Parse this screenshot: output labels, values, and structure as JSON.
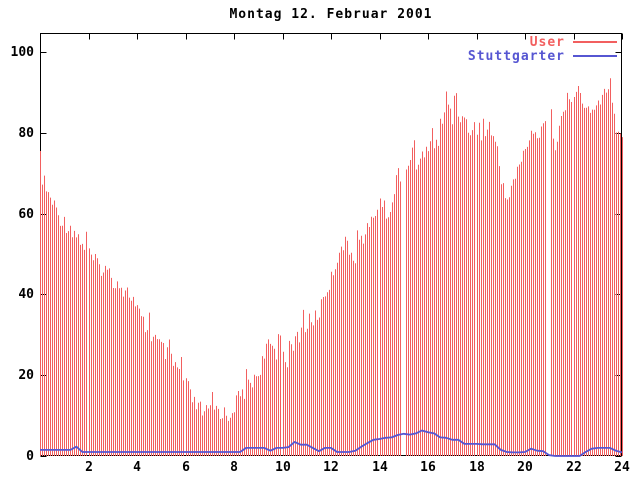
{
  "chart_data": {
    "type": "mixed",
    "title": "Montag 12. Februar 2001",
    "xlabel": "",
    "ylabel": "",
    "xlim": [
      0,
      24
    ],
    "ylim": [
      0,
      104.6
    ],
    "x_ticks": [
      2,
      4,
      6,
      8,
      10,
      12,
      14,
      16,
      18,
      20,
      22,
      24
    ],
    "y_ticks": [
      0,
      20,
      40,
      60,
      80,
      100
    ],
    "grid": false,
    "legend_position": "top-right-inside",
    "background_color": "#ffffff",
    "axis_color": "#000000",
    "sample_interval_hours": 0.25,
    "missing_intervals": [
      [
        14.88,
        15.02
      ],
      [
        20.88,
        21.06
      ]
    ],
    "series": [
      {
        "name": "User",
        "style": "impulses",
        "color": "#f25f5f",
        "values": [
          73,
          68,
          65,
          62,
          60,
          59,
          57,
          55,
          52,
          50,
          49,
          48,
          46,
          45,
          43,
          42,
          38,
          35,
          33,
          31,
          29,
          27,
          25,
          23,
          20,
          16,
          14,
          13,
          13,
          14,
          13,
          12,
          15,
          17,
          19,
          21,
          23,
          27,
          30,
          28,
          27,
          26,
          31,
          33,
          35,
          36,
          38,
          43,
          46,
          52,
          55,
          53,
          52,
          56,
          58,
          61,
          66,
          62,
          65,
          73,
          71,
          77,
          75,
          76,
          78,
          79,
          81,
          91,
          86,
          88,
          85,
          83,
          84,
          81,
          84,
          80,
          71,
          66,
          70,
          74,
          79,
          81,
          82,
          85,
          89,
          80,
          85,
          90,
          93,
          91,
          88,
          87,
          90,
          92,
          91,
          84,
          80
        ]
      },
      {
        "name": "Stuttgarter",
        "style": "line",
        "color": "#5656d2",
        "values": [
          1.5,
          1.5,
          1.5,
          1.5,
          1.5,
          1.5,
          2.3,
          1.0,
          1.0,
          1.0,
          1.0,
          1.0,
          1.0,
          1.0,
          1.0,
          1.0,
          1.0,
          1.0,
          1.0,
          1.0,
          1.0,
          1.0,
          1.0,
          1.0,
          1.0,
          1.0,
          1.0,
          1.0,
          1.0,
          1.0,
          1.0,
          1.0,
          1.0,
          1.0,
          2.0,
          2.0,
          2.0,
          2.0,
          1.3,
          2.0,
          2.0,
          2.2,
          3.5,
          2.8,
          2.8,
          2.0,
          1.2,
          2.0,
          2.0,
          1.0,
          1.0,
          1.0,
          1.3,
          2.3,
          3.2,
          4.0,
          4.2,
          4.5,
          4.6,
          5.2,
          5.5,
          5.3,
          5.6,
          6.3,
          5.9,
          5.6,
          4.6,
          4.5,
          4.0,
          4.0,
          3.0,
          3.0,
          3.0,
          2.9,
          2.9,
          2.9,
          1.5,
          1.0,
          0.9,
          0.9,
          1.0,
          1.8,
          1.3,
          1.2,
          0.2,
          0.0,
          0.0,
          0.0,
          0.0,
          0.0,
          1.0,
          1.8,
          2.0,
          2.0,
          2.0,
          1.3,
          0.9
        ]
      }
    ]
  }
}
